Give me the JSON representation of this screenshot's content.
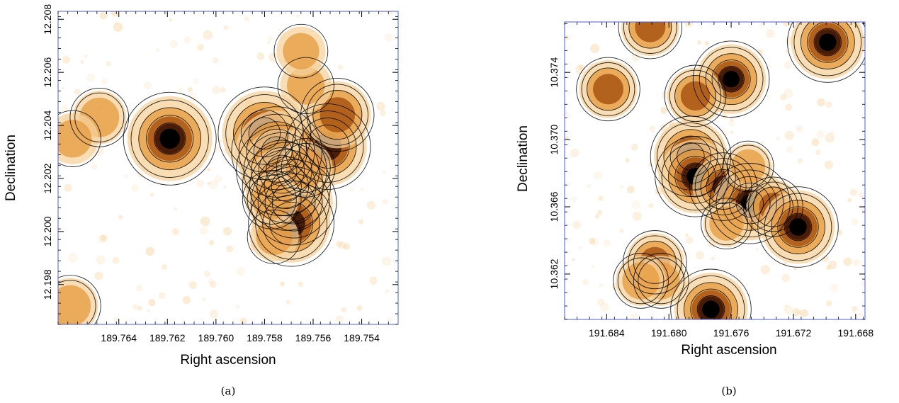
{
  "chart_data": [
    {
      "type": "heatmap",
      "panel_label": "(a)",
      "xlabel": "Right ascension",
      "ylabel": "Declination",
      "x_reversed": true,
      "xlim": [
        189.7665,
        189.7525
      ],
      "ylim": [
        12.1965,
        12.2083
      ],
      "x_ticks": [
        189.764,
        189.762,
        189.76,
        189.758,
        189.756,
        189.754
      ],
      "x_tick_labels": [
        "189.764",
        "189.762",
        "189.760",
        "189.758",
        "189.756",
        "189.754"
      ],
      "y_ticks": [
        12.198,
        12.2,
        12.202,
        12.204,
        12.206,
        12.208
      ],
      "y_tick_labels": [
        "12.198",
        "12.200",
        "12.202",
        "12.204",
        "12.206",
        "12.208"
      ],
      "colormap": [
        "#ffffff",
        "#f6d29c",
        "#e59a3e",
        "#a85512",
        "#3d1505",
        "#000000"
      ],
      "frame_color": "#4d5fd1",
      "contour_color": "#000000",
      "sources": [
        {
          "ra": 189.7619,
          "dec": 12.2035,
          "peak": 1.0
        },
        {
          "ra": 189.758,
          "dec": 12.2037,
          "peak": 1.0
        },
        {
          "ra": 189.7575,
          "dec": 12.203,
          "peak": 0.95
        },
        {
          "ra": 189.7573,
          "dec": 12.2023,
          "peak": 0.95
        },
        {
          "ra": 189.7571,
          "dec": 12.2017,
          "peak": 0.9
        },
        {
          "ra": 189.7568,
          "dec": 12.2011,
          "peak": 0.85
        },
        {
          "ra": 189.7569,
          "dec": 12.2003,
          "peak": 0.85
        },
        {
          "ra": 189.7554,
          "dec": 12.2032,
          "peak": 0.85
        },
        {
          "ra": 189.755,
          "dec": 12.2044,
          "peak": 0.6
        },
        {
          "ra": 189.7648,
          "dec": 12.2043,
          "peak": 0.3
        },
        {
          "ra": 189.7659,
          "dec": 12.2035,
          "peak": 0.25
        },
        {
          "ra": 189.7563,
          "dec": 12.2055,
          "peak": 0.25
        },
        {
          "ra": 189.7576,
          "dec": 12.1998,
          "peak": 0.2
        },
        {
          "ra": 189.7577,
          "dec": 12.2012,
          "peak": 0.3
        },
        {
          "ra": 189.7563,
          "dec": 12.2024,
          "peak": 0.3
        },
        {
          "ra": 189.7565,
          "dec": 12.2068,
          "peak": 0.2
        },
        {
          "ra": 189.766,
          "dec": 12.1972,
          "peak": 0.35
        }
      ]
    },
    {
      "type": "heatmap",
      "panel_label": "(b)",
      "xlabel": "Right ascension",
      "ylabel": "Declination",
      "x_reversed": true,
      "xlim": [
        191.6867,
        191.6674
      ],
      "ylim": [
        10.3593,
        10.377
      ],
      "x_ticks": [
        191.684,
        191.68,
        191.676,
        191.672,
        191.668
      ],
      "x_tick_labels": [
        "191.684",
        "191.680",
        "191.676",
        "191.672",
        "191.668"
      ],
      "y_ticks": [
        10.362,
        10.366,
        10.37,
        10.374
      ],
      "y_tick_labels": [
        "10.362",
        "10.366",
        "10.370",
        "10.374"
      ],
      "colormap": [
        "#ffffff",
        "#f6d29c",
        "#e59a3e",
        "#a85512",
        "#3d1505",
        "#000000"
      ],
      "frame_color": "#4d5fd1",
      "contour_color": "#000000",
      "sources": [
        {
          "ra": 191.676,
          "dec": 10.3736,
          "peak": 0.9
        },
        {
          "ra": 191.6783,
          "dec": 10.3726,
          "peak": 0.55
        },
        {
          "ra": 191.6839,
          "dec": 10.373,
          "peak": 0.6
        },
        {
          "ra": 191.6786,
          "dec": 10.369,
          "peak": 1.0
        },
        {
          "ra": 191.6783,
          "dec": 10.3678,
          "peak": 1.0
        },
        {
          "ra": 191.6765,
          "dec": 10.3672,
          "peak": 0.7
        },
        {
          "ra": 191.6748,
          "dec": 10.3662,
          "peak": 1.0
        },
        {
          "ra": 191.6733,
          "dec": 10.366,
          "peak": 0.5
        },
        {
          "ra": 191.6717,
          "dec": 10.3648,
          "peak": 1.0
        },
        {
          "ra": 191.6749,
          "dec": 10.3684,
          "peak": 0.3
        },
        {
          "ra": 191.6809,
          "dec": 10.3627,
          "peak": 0.6
        },
        {
          "ra": 191.6805,
          "dec": 10.3616,
          "peak": 0.4
        },
        {
          "ra": 191.6818,
          "dec": 10.3616,
          "peak": 0.4
        },
        {
          "ra": 191.6773,
          "dec": 10.3599,
          "peak": 1.0
        },
        {
          "ra": 191.6812,
          "dec": 10.3767,
          "peak": 0.6
        },
        {
          "ra": 191.6698,
          "dec": 10.3758,
          "peak": 1.0
        },
        {
          "ra": 191.6763,
          "dec": 10.365,
          "peak": 0.3
        }
      ]
    }
  ]
}
